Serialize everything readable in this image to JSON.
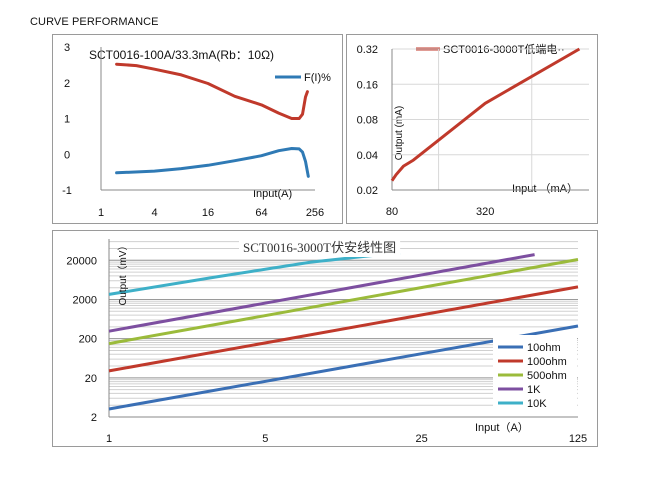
{
  "page_title": "CURVE PERFORMANCE",
  "chart_data": [
    {
      "type": "line",
      "title": "SCT0016-100A/33.3mA(Rb：10Ω)",
      "xlabel": "Input(A)",
      "ylabel": "",
      "xscale": "log2",
      "x_ticks": [
        "1",
        "4",
        "16",
        "64",
        "256"
      ],
      "y_ticks": [
        "3",
        "2",
        "1",
        "0",
        "-1"
      ],
      "ylim": [
        -1,
        3
      ],
      "xlim": [
        1,
        256
      ],
      "legend_position": "top-right",
      "series": [
        {
          "name": "",
          "color": "#c0392b",
          "points": [
            [
              1.5,
              2.52
            ],
            [
              2.5,
              2.48
            ],
            [
              4,
              2.38
            ],
            [
              8,
              2.22
            ],
            [
              16,
              1.98
            ],
            [
              32,
              1.62
            ],
            [
              64,
              1.38
            ],
            [
              100,
              1.15
            ],
            [
              140,
              1.0
            ],
            [
              170,
              1.0
            ],
            [
              185,
              1.12
            ],
            [
              200,
              1.6
            ],
            [
              210,
              1.75
            ]
          ]
        },
        {
          "name": "F(I)%",
          "color": "#2f7ab5",
          "points": [
            [
              1.5,
              -0.52
            ],
            [
              4,
              -0.47
            ],
            [
              8,
              -0.4
            ],
            [
              16,
              -0.31
            ],
            [
              32,
              -0.18
            ],
            [
              64,
              -0.04
            ],
            [
              100,
              0.1
            ],
            [
              140,
              0.16
            ],
            [
              170,
              0.15
            ],
            [
              185,
              0.06
            ],
            [
              200,
              -0.2
            ],
            [
              215,
              -0.62
            ]
          ]
        }
      ]
    },
    {
      "type": "line",
      "title": "",
      "xlabel": "Input （mA）",
      "ylabel": "Output (mA)",
      "xscale": "log",
      "yscale": "log",
      "x_ticks": [
        "80",
        "320"
      ],
      "y_ticks": [
        "0.32",
        "0.16",
        "0.08",
        "0.04",
        "0.02"
      ],
      "xlim": [
        80,
        1500
      ],
      "ylim": [
        0.02,
        0.32
      ],
      "legend_position": "top",
      "series": [
        {
          "name": "SCT0016-3000T低端电··",
          "color": "#c0392b",
          "points": [
            [
              80,
              0.024
            ],
            [
              85,
              0.027
            ],
            [
              95,
              0.032
            ],
            [
              110,
              0.036
            ],
            [
              320,
              0.11
            ],
            [
              1300,
              0.32
            ]
          ]
        }
      ]
    },
    {
      "type": "line",
      "title": "SCT0016-3000T伏安线性图",
      "xlabel": "Input（A）",
      "ylabel": "Output（mV）",
      "xscale": "log",
      "yscale": "log",
      "x_ticks": [
        "1",
        "5",
        "25",
        "125"
      ],
      "y_ticks": [
        "20000",
        "2000",
        "200",
        "20",
        "2"
      ],
      "xlim": [
        1,
        125
      ],
      "ylim": [
        2,
        70000
      ],
      "legend_position": "bottom-right",
      "series": [
        {
          "name": "10ohm",
          "color": "#3a6fb5",
          "points": [
            [
              1,
              3.2
            ],
            [
              125,
              420
            ]
          ]
        },
        {
          "name": "100ohm",
          "color": "#c0392b",
          "points": [
            [
              1,
              30
            ],
            [
              125,
              4200
            ]
          ]
        },
        {
          "name": "500ohm",
          "color": "#9bbb3b",
          "points": [
            [
              1,
              150
            ],
            [
              125,
              21000
            ]
          ]
        },
        {
          "name": "1K",
          "color": "#7d4fa0",
          "points": [
            [
              1,
              310
            ],
            [
              80,
              28000
            ]
          ]
        },
        {
          "name": "10K",
          "color": "#3eb0c8",
          "points": [
            [
              1,
              2700
            ],
            [
              3,
              7500
            ],
            [
              8,
              18000
            ],
            [
              16,
              27500
            ],
            [
              20,
              31000
            ]
          ]
        }
      ]
    }
  ]
}
